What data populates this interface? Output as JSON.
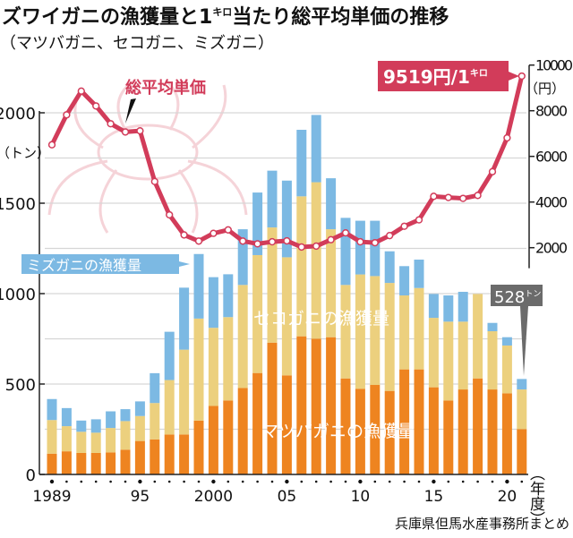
{
  "colors": {
    "matsuba": "#ee8420",
    "seko": "#ecd07e",
    "mizu": "#7cb9e3",
    "price_line": "#d23c5a",
    "callout_gray": "#6b6b6b"
  },
  "chart_data": {
    "type": "bar+line",
    "title_part1": "ズワイガニの漁獲量と1",
    "title_unit": "キロ",
    "title_part2": "当たり総平均単価の推移",
    "subtitle": "（マツバガニ、セコガニ、ミズガニ）",
    "x": [
      1989,
      1990,
      1991,
      1992,
      1993,
      1994,
      1995,
      1996,
      1997,
      1998,
      1999,
      2000,
      2001,
      2002,
      2003,
      2004,
      2005,
      2006,
      2007,
      2008,
      2009,
      2010,
      2011,
      2012,
      2013,
      2014,
      2015,
      2016,
      2017,
      2018,
      2019,
      2020,
      2021
    ],
    "x_tick_labels": [
      {
        "year": 1989,
        "label": "1989"
      },
      {
        "year": 1995,
        "label": "95"
      },
      {
        "year": 2000,
        "label": "2000"
      },
      {
        "year": 2005,
        "label": "05"
      },
      {
        "year": 2010,
        "label": "10"
      },
      {
        "year": 2015,
        "label": "15"
      },
      {
        "year": 2020,
        "label": "20"
      }
    ],
    "xlabel": "（年度）",
    "stacked": true,
    "series": [
      {
        "name": "マツバガニの漁獲量",
        "axis": "left",
        "values": [
          115,
          128,
          119,
          119,
          122,
          137,
          185,
          194,
          221,
          221,
          298,
          379,
          409,
          478,
          561,
          729,
          548,
          764,
          751,
          759,
          531,
          474,
          495,
          462,
          581,
          581,
          482,
          409,
          470,
          531,
          470,
          449,
          251
        ]
      },
      {
        "name": "セコガニの漁獲量",
        "axis": "left",
        "values": [
          186,
          139,
          117,
          112,
          135,
          158,
          138,
          201,
          301,
          469,
          564,
          432,
          461,
          570,
          652,
          637,
          653,
          774,
          865,
          597,
          517,
          632,
          602,
          597,
          409,
          450,
          384,
          436,
          375,
          467,
          322,
          264,
          219
        ]
      },
      {
        "name": "ミズガニの漁獲量",
        "axis": "left",
        "values": [
          116,
          100,
          62,
          74,
          92,
          66,
          81,
          165,
          267,
          343,
          357,
          280,
          237,
          308,
          346,
          314,
          424,
          368,
          372,
          282,
          371,
          297,
          306,
          175,
          162,
          157,
          132,
          145,
          165,
          0,
          46,
          46,
          58
        ]
      },
      {
        "name": "総平均単価",
        "axis": "right",
        "type": "line",
        "values": [
          6510,
          7820,
          8860,
          8210,
          7430,
          7070,
          7120,
          4900,
          3440,
          2560,
          2290,
          2630,
          2780,
          2290,
          2170,
          2260,
          2300,
          2030,
          2070,
          2350,
          2650,
          2260,
          2220,
          2530,
          2940,
          3220,
          4250,
          4200,
          4160,
          4290,
          5330,
          6810,
          9519
        ]
      }
    ],
    "left_axis": {
      "unit": "（トン）",
      "ylim": [
        0,
        2000
      ],
      "ticks": [
        "0",
        "500",
        "1000",
        "1500",
        "2000"
      ],
      "tick_values": [
        0,
        500,
        1000,
        1500,
        2000
      ]
    },
    "right_axis": {
      "unit": "（円）",
      "ylim": [
        1000,
        10000
      ],
      "ticks": [
        "2000",
        "4000",
        "6000",
        "8000",
        "10000"
      ],
      "tick_values": [
        2000,
        4000,
        6000,
        8000,
        10000
      ]
    },
    "grid": true,
    "annotations": {
      "price_label": "総平均単価",
      "mizu_label": "ミズガニの漁獲量",
      "seko_label": "セコガニの漁獲量",
      "matsuba_label": "マツバガニの漁獲量",
      "latest_price_value": "9519円/1",
      "latest_price_unit": "キロ",
      "latest_catch_value": "528",
      "latest_catch_unit": "トン"
    },
    "source": "兵庫県但馬水産事務所まとめ"
  }
}
